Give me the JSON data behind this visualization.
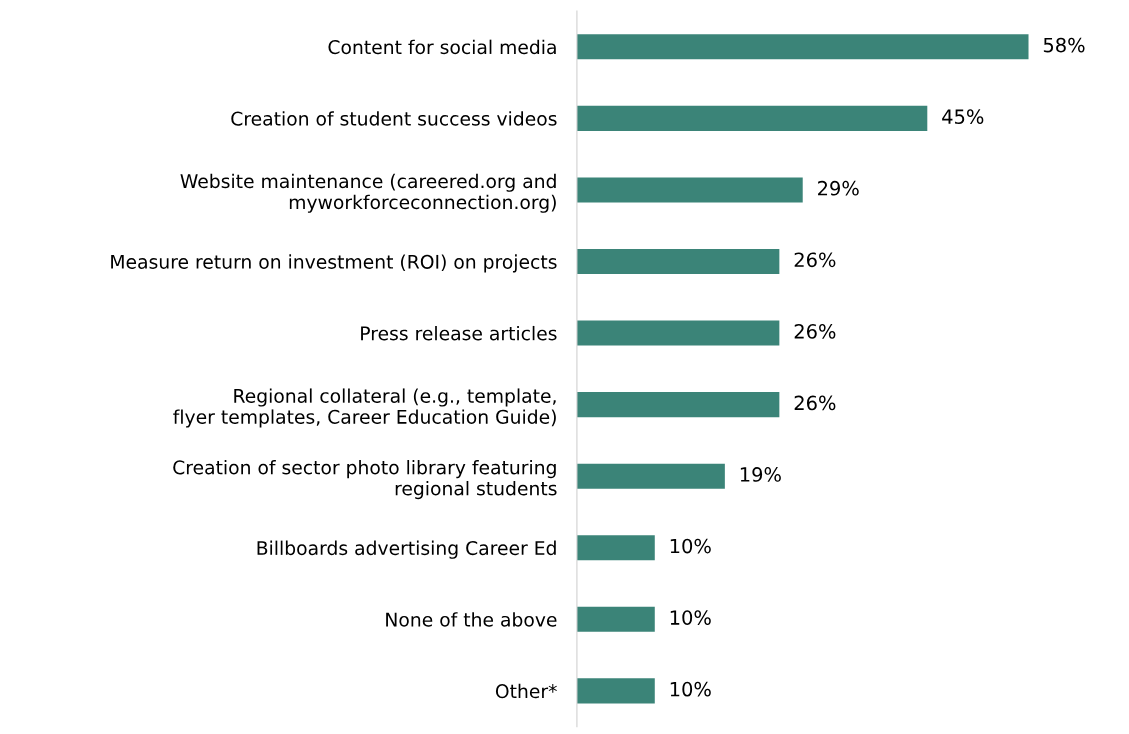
{
  "chart_data": {
    "type": "bar",
    "orientation": "horizontal",
    "categories": [
      "Content for social media",
      "Creation of student success videos",
      "Website maintenance (careered.org and\nmyworkforceconnection.org)",
      "Measure return on investment (ROI) on projects",
      "Press release articles",
      "Regional collateral (e.g., template,\nflyer templates, Career Education Guide)",
      "Creation of sector photo library featuring\nregional students",
      "Billboards advertising Career Ed",
      "None of the above",
      "Other*"
    ],
    "values": [
      58,
      45,
      29,
      26,
      26,
      26,
      19,
      10,
      10,
      10
    ],
    "value_labels": [
      "58%",
      "45%",
      "29%",
      "26%",
      "26%",
      "26%",
      "19%",
      "10%",
      "10%",
      "10%"
    ],
    "color": "#3b8478",
    "grid": false
  }
}
